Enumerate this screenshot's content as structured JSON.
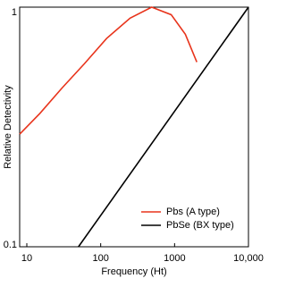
{
  "chart_data": {
    "type": "line",
    "xlabel": "Frequency (Ht)",
    "ylabel": "Relative Detectivity",
    "xscale": "log",
    "yscale": "log",
    "xlim": [
      8,
      10000
    ],
    "ylim": [
      0.1,
      1
    ],
    "xticks": [
      10,
      100,
      1000,
      {
        "value": 10000,
        "label": "10,000"
      }
    ],
    "yticks": [
      0.1,
      1
    ],
    "grid": false,
    "legend": "lower right",
    "series": [
      {
        "name": "Pbs (A type)",
        "color": "#e8341c",
        "x": [
          8,
          15,
          30,
          60,
          120,
          250,
          490,
          900,
          1400,
          2000
        ],
        "values": [
          0.295,
          0.36,
          0.46,
          0.58,
          0.74,
          0.9,
          1.0,
          0.93,
          0.77,
          0.59
        ]
      },
      {
        "name": "PbSe (BX type)",
        "color": "#000000",
        "x": [
          50,
          10000
        ],
        "values": [
          0.1,
          1
        ]
      }
    ]
  }
}
